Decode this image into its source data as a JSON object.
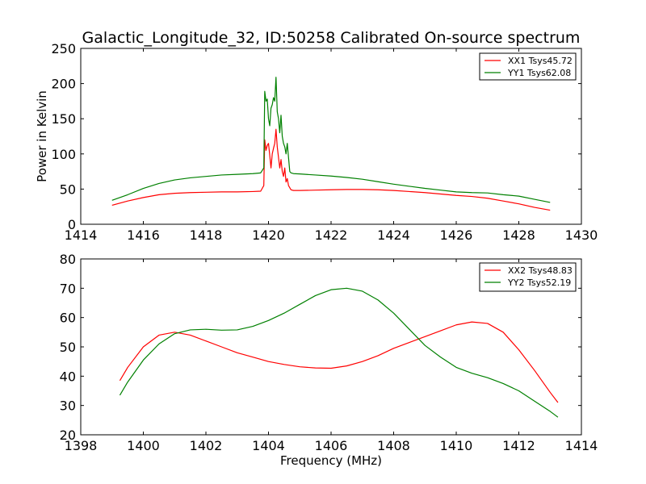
{
  "title": "Galactic_Longitude_32, ID:50258 Calibrated On-source spectrum",
  "chart_data": [
    {
      "type": "line",
      "xlabel": "",
      "ylabel": "Power in Kelvin",
      "xlim": [
        1414,
        1430
      ],
      "ylim": [
        0,
        250
      ],
      "xticks": [
        "1414",
        "1416",
        "1418",
        "1420",
        "1422",
        "1424",
        "1426",
        "1428",
        "1430"
      ],
      "yticks": [
        "0",
        "50",
        "100",
        "150",
        "200",
        "250"
      ],
      "grid": false,
      "legend_position": "top-right",
      "series": [
        {
          "name": "XX1 Tsys45.72",
          "color": "#ff0000",
          "x": [
            1415.0,
            1415.5,
            1416.0,
            1416.5,
            1417.0,
            1417.5,
            1418.0,
            1418.5,
            1419.0,
            1419.5,
            1419.75,
            1419.85,
            1419.88,
            1419.92,
            1419.96,
            1420.0,
            1420.04,
            1420.08,
            1420.12,
            1420.16,
            1420.2,
            1420.24,
            1420.28,
            1420.32,
            1420.36,
            1420.4,
            1420.44,
            1420.48,
            1420.52,
            1420.56,
            1420.6,
            1420.64,
            1420.68,
            1420.72,
            1420.8,
            1421.0,
            1421.5,
            1422.0,
            1422.5,
            1423.0,
            1423.5,
            1424.0,
            1424.5,
            1425.0,
            1425.5,
            1426.0,
            1426.5,
            1427.0,
            1427.5,
            1428.0,
            1428.5,
            1429.0
          ],
          "y": [
            27,
            33,
            38,
            42,
            44,
            45,
            45.5,
            46,
            46,
            46.5,
            47,
            55,
            120,
            105,
            112,
            115,
            98,
            80,
            100,
            108,
            115,
            135,
            110,
            95,
            80,
            92,
            75,
            68,
            80,
            60,
            65,
            55,
            52,
            49,
            48,
            48,
            48.5,
            49,
            49.5,
            49.5,
            49,
            48,
            46.5,
            45,
            43,
            41,
            39.5,
            37,
            33,
            29,
            24,
            20
          ]
        },
        {
          "name": "YY1 Tsys62.08",
          "color": "#008000",
          "x": [
            1415.0,
            1415.5,
            1416.0,
            1416.5,
            1417.0,
            1417.5,
            1418.0,
            1418.5,
            1419.0,
            1419.5,
            1419.75,
            1419.85,
            1419.88,
            1419.92,
            1419.96,
            1420.0,
            1420.04,
            1420.08,
            1420.12,
            1420.16,
            1420.2,
            1420.24,
            1420.28,
            1420.32,
            1420.36,
            1420.4,
            1420.44,
            1420.48,
            1420.52,
            1420.56,
            1420.6,
            1420.64,
            1420.68,
            1420.72,
            1420.8,
            1421.0,
            1421.5,
            1422.0,
            1422.5,
            1423.0,
            1423.5,
            1424.0,
            1424.5,
            1425.0,
            1425.5,
            1426.0,
            1426.5,
            1427.0,
            1427.5,
            1428.0,
            1428.5,
            1429.0
          ],
          "y": [
            34,
            42,
            51,
            58,
            63,
            66,
            68,
            70,
            71,
            72,
            73,
            80,
            189,
            175,
            178,
            150,
            140,
            165,
            170,
            180,
            175,
            209,
            160,
            150,
            130,
            155,
            125,
            115,
            110,
            100,
            115,
            95,
            75,
            73,
            72,
            71.5,
            70,
            68.5,
            66.5,
            64,
            60.5,
            57,
            54,
            51,
            48.5,
            46,
            45,
            44.5,
            42,
            40,
            35.5,
            31
          ]
        }
      ]
    },
    {
      "type": "line",
      "xlabel": "Frequency (MHz)",
      "ylabel": "",
      "xlim": [
        1398,
        1414
      ],
      "ylim": [
        20,
        80
      ],
      "xticks": [
        "1398",
        "1400",
        "1402",
        "1404",
        "1406",
        "1408",
        "1410",
        "1412",
        "1414"
      ],
      "yticks": [
        "20",
        "30",
        "40",
        "50",
        "60",
        "70",
        "80"
      ],
      "grid": false,
      "legend_position": "top-right",
      "series": [
        {
          "name": "XX2 Tsys48.83",
          "color": "#ff0000",
          "x": [
            1399.25,
            1399.5,
            1400.0,
            1400.5,
            1401.0,
            1401.5,
            1402.0,
            1402.5,
            1403.0,
            1403.5,
            1404.0,
            1404.5,
            1405.0,
            1405.5,
            1406.0,
            1406.5,
            1407.0,
            1407.5,
            1408.0,
            1408.5,
            1409.0,
            1409.5,
            1410.0,
            1410.5,
            1411.0,
            1411.5,
            1412.0,
            1412.5,
            1413.0,
            1413.25
          ],
          "y": [
            38.5,
            43,
            50,
            54,
            55,
            54,
            52,
            50,
            48,
            46.5,
            45,
            44,
            43.2,
            42.8,
            42.7,
            43.5,
            45,
            47,
            49.5,
            51.5,
            53.5,
            55.5,
            57.5,
            58.5,
            58,
            55,
            49,
            42,
            34.5,
            31
          ]
        },
        {
          "name": "YY2 Tsys52.19",
          "color": "#008000",
          "x": [
            1399.25,
            1399.5,
            1400.0,
            1400.5,
            1401.0,
            1401.5,
            1402.0,
            1402.5,
            1403.0,
            1403.5,
            1404.0,
            1404.5,
            1405.0,
            1405.5,
            1406.0,
            1406.5,
            1407.0,
            1407.5,
            1408.0,
            1408.5,
            1409.0,
            1409.5,
            1410.0,
            1410.5,
            1411.0,
            1411.5,
            1412.0,
            1412.5,
            1413.0,
            1413.25
          ],
          "y": [
            33.5,
            38,
            45.5,
            51,
            54.5,
            55.8,
            56,
            55.7,
            55.8,
            57,
            59,
            61.5,
            64.5,
            67.5,
            69.5,
            70,
            69,
            66,
            61.5,
            56,
            50.5,
            46.5,
            43,
            41,
            39.5,
            37.5,
            35,
            31.5,
            28,
            26
          ]
        }
      ]
    }
  ]
}
